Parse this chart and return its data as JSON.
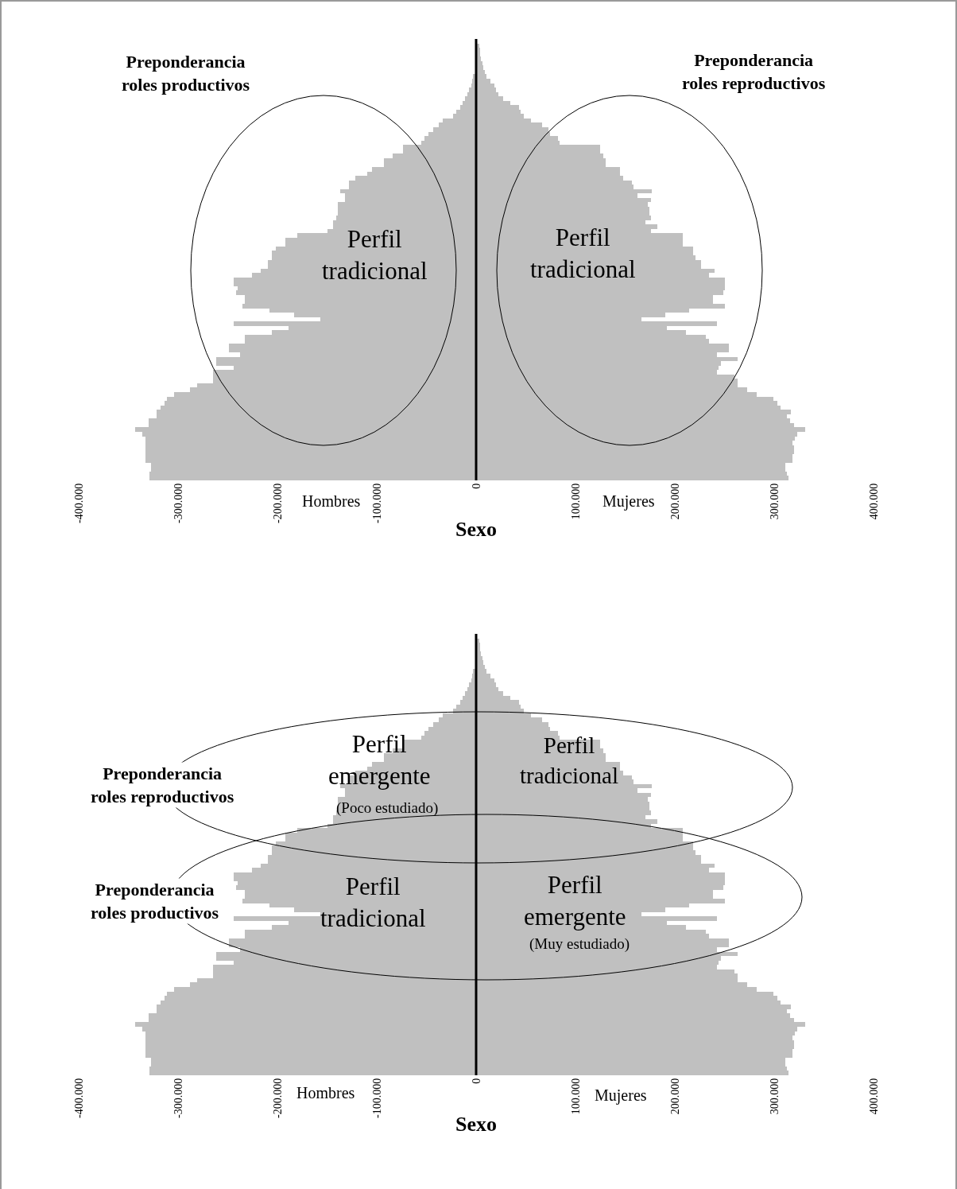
{
  "chart_data": [
    {
      "type": "bar",
      "orientation": "horizontal",
      "stacked": true,
      "xlabel": "Sexo",
      "tick_labels": "x",
      "categories": [
        null,
        null,
        null,
        null,
        null,
        null,
        null,
        null,
        null,
        null,
        null,
        null,
        null,
        null,
        null,
        null,
        null,
        null,
        null,
        null,
        null,
        null,
        null,
        null,
        null,
        null,
        null,
        null,
        null,
        null,
        null,
        null,
        null,
        null,
        null,
        null,
        null,
        null,
        null,
        null,
        null,
        null,
        null,
        null,
        null,
        null,
        null,
        null,
        null,
        null,
        null,
        null,
        null,
        null,
        null,
        null,
        null,
        null,
        null,
        null,
        null,
        null,
        null,
        null,
        null,
        null,
        null,
        null,
        null,
        null,
        null,
        null,
        null,
        null,
        null,
        null,
        null,
        null,
        null,
        null,
        null,
        null,
        null,
        null,
        null,
        null,
        null,
        null,
        null,
        null,
        null,
        null,
        null,
        null,
        null,
        null,
        null,
        null,
        null,
        null
      ],
      "series": [
        {
          "color": "#c0c0c0",
          "values": [
            null,
            null,
            null,
            null,
            null,
            null,
            null,
            null,
            -3000,
            -4000,
            -5000,
            -7000,
            -9000,
            -11000,
            -14000,
            -16000,
            -20000,
            -23000,
            -34000,
            -38000,
            -43000,
            -48000,
            -52000,
            -55000,
            -74000,
            -74000,
            -84000,
            -93000,
            -93000,
            -105000,
            -110000,
            -122000,
            -128000,
            -128000,
            -137000,
            -132000,
            -132000,
            -139000,
            -139000,
            -139000,
            -141000,
            -144000,
            -144000,
            -150000,
            -180000,
            -192000,
            -192000,
            -202000,
            -206000,
            -206000,
            -210000,
            -210000,
            -217000,
            -226000,
            -244000,
            -244000,
            -240000,
            -242000,
            -233000,
            -233000,
            -235000,
            -208000,
            -183000,
            -157000,
            -244000,
            -189000,
            -206000,
            -233000,
            -233000,
            -249000,
            -249000,
            -238000,
            -262000,
            -262000,
            -244000,
            -265000,
            -265000,
            -265000,
            -281000,
            -288000,
            -304000,
            -311000,
            -314000,
            -318000,
            -322000,
            -322000,
            -330000,
            -330000,
            -343000,
            -336000,
            -333000,
            -333000,
            -333000,
            -333000,
            -333000,
            -333000,
            -327000,
            -327000,
            -329000,
            -329000
          ]
        },
        {
          "color": "#c0c0c0",
          "values": [
            null,
            3000,
            4000,
            4000,
            5000,
            6000,
            7000,
            9000,
            10000,
            14000,
            18000,
            20000,
            22000,
            27000,
            34000,
            43000,
            45000,
            48000,
            55000,
            66000,
            73000,
            74000,
            82000,
            84000,
            125000,
            125000,
            128000,
            130000,
            130000,
            145000,
            145000,
            148000,
            157000,
            158000,
            177000,
            162000,
            176000,
            173000,
            174000,
            174000,
            176000,
            170000,
            182000,
            176000,
            208000,
            208000,
            208000,
            218000,
            218000,
            221000,
            226000,
            226000,
            240000,
            234000,
            250000,
            250000,
            250000,
            249000,
            238000,
            238000,
            250000,
            214000,
            190000,
            166000,
            242000,
            192000,
            211000,
            231000,
            234000,
            254000,
            254000,
            242000,
            263000,
            246000,
            244000,
            242000,
            260000,
            263000,
            263000,
            273000,
            282000,
            299000,
            303000,
            306000,
            317000,
            313000,
            316000,
            320000,
            331000,
            323000,
            321000,
            318000,
            320000,
            320000,
            318000,
            318000,
            311000,
            311000,
            313000,
            314000
          ]
        }
      ],
      "xlim": [
        -400000,
        400000
      ],
      "xticks": [
        {
          "value": -400000,
          "label": "-400.000"
        },
        {
          "value": -300000,
          "label": "-300.000"
        },
        {
          "value": -200000,
          "label": "-200.000"
        },
        {
          "value": -100000,
          "label": "-100.000"
        },
        0,
        {
          "value": 100000,
          "label": "100.000"
        },
        {
          "value": 200000,
          "label": "200.000"
        },
        {
          "value": 300000,
          "label": "300.000"
        },
        {
          "value": 400000,
          "label": "400.000"
        }
      ],
      "ref_lines": [
        {
          "axis": "x",
          "value": 0,
          "color": "#000000"
        }
      ],
      "annotations": [
        "Preponderancia\nroles productivos",
        "Preponderancia\nroles reproductivos",
        "Perfil\ntradicional",
        "Perfil\ntradicional",
        "Hombres",
        "Mujeres"
      ]
    },
    {
      "type": "bar",
      "orientation": "horizontal",
      "stacked": true,
      "xlabel": "Sexo",
      "tick_labels": "x",
      "categories": [
        null,
        null,
        null,
        null,
        null,
        null,
        null,
        null,
        null,
        null,
        null,
        null,
        null,
        null,
        null,
        null,
        null,
        null,
        null,
        null,
        null,
        null,
        null,
        null,
        null,
        null,
        null,
        null,
        null,
        null,
        null,
        null,
        null,
        null,
        null,
        null,
        null,
        null,
        null,
        null,
        null,
        null,
        null,
        null,
        null,
        null,
        null,
        null,
        null,
        null,
        null,
        null,
        null,
        null,
        null,
        null,
        null,
        null,
        null,
        null,
        null,
        null,
        null,
        null,
        null,
        null,
        null,
        null,
        null,
        null,
        null,
        null,
        null,
        null,
        null,
        null,
        null,
        null,
        null,
        null,
        null,
        null,
        null,
        null,
        null,
        null,
        null,
        null,
        null,
        null,
        null,
        null,
        null,
        null,
        null,
        null,
        null,
        null,
        null,
        null
      ],
      "series": [
        {
          "color": "#c0c0c0",
          "values": [
            null,
            null,
            null,
            null,
            null,
            null,
            null,
            null,
            -3000,
            -4000,
            -5000,
            -7000,
            -9000,
            -11000,
            -14000,
            -16000,
            -20000,
            -23000,
            -34000,
            -38000,
            -43000,
            -48000,
            -52000,
            -55000,
            -74000,
            -74000,
            -84000,
            -93000,
            -93000,
            -105000,
            -110000,
            -122000,
            -128000,
            -128000,
            -137000,
            -132000,
            -132000,
            -139000,
            -139000,
            -139000,
            -141000,
            -144000,
            -144000,
            -150000,
            -180000,
            -192000,
            -192000,
            -202000,
            -206000,
            -206000,
            -210000,
            -210000,
            -217000,
            -226000,
            -244000,
            -244000,
            -240000,
            -242000,
            -233000,
            -233000,
            -235000,
            -208000,
            -183000,
            -157000,
            -244000,
            -189000,
            -206000,
            -233000,
            -233000,
            -249000,
            -249000,
            -238000,
            -262000,
            -262000,
            -244000,
            -265000,
            -265000,
            -265000,
            -281000,
            -288000,
            -304000,
            -311000,
            -314000,
            -318000,
            -322000,
            -322000,
            -330000,
            -330000,
            -343000,
            -336000,
            -333000,
            -333000,
            -333000,
            -333000,
            -333000,
            -333000,
            -327000,
            -327000,
            -329000,
            -329000
          ]
        },
        {
          "color": "#c0c0c0",
          "values": [
            null,
            3000,
            4000,
            4000,
            5000,
            6000,
            7000,
            9000,
            10000,
            14000,
            18000,
            20000,
            22000,
            27000,
            34000,
            43000,
            45000,
            48000,
            55000,
            66000,
            73000,
            74000,
            82000,
            84000,
            125000,
            125000,
            128000,
            130000,
            130000,
            145000,
            145000,
            148000,
            157000,
            158000,
            177000,
            162000,
            176000,
            173000,
            174000,
            174000,
            176000,
            170000,
            182000,
            176000,
            208000,
            208000,
            208000,
            218000,
            218000,
            221000,
            226000,
            226000,
            240000,
            234000,
            250000,
            250000,
            250000,
            249000,
            238000,
            238000,
            250000,
            214000,
            190000,
            166000,
            242000,
            192000,
            211000,
            231000,
            234000,
            254000,
            254000,
            242000,
            263000,
            246000,
            244000,
            242000,
            260000,
            263000,
            263000,
            273000,
            282000,
            299000,
            303000,
            306000,
            317000,
            313000,
            316000,
            320000,
            331000,
            323000,
            321000,
            318000,
            320000,
            320000,
            318000,
            318000,
            311000,
            311000,
            313000,
            314000
          ]
        }
      ],
      "xlim": [
        -400000,
        400000
      ],
      "xticks": [
        {
          "value": -400000,
          "label": "-400.000"
        },
        {
          "value": -300000,
          "label": "-300.000"
        },
        {
          "value": -200000,
          "label": "-200.000"
        },
        {
          "value": -100000,
          "label": "-100.000"
        },
        0,
        {
          "value": 100000,
          "label": "100.000"
        },
        {
          "value": 200000,
          "label": "200.000"
        },
        {
          "value": 300000,
          "label": "300.000"
        },
        {
          "value": 400000,
          "label": "400.000"
        }
      ],
      "ref_lines": [
        {
          "axis": "x",
          "value": 0,
          "color": "#000000"
        }
      ],
      "annotations": [
        "Preponderancia\nroles reproductivos",
        "Preponderancia\nroles productivos",
        "Perfil\nemergente",
        "(Poco estudiado)",
        "Perfil\ntradicional",
        "Perfil\ntradicional",
        "Perfil\nemergente",
        "(Muy estudiado)",
        "Hombres",
        "Mujeres"
      ]
    }
  ]
}
